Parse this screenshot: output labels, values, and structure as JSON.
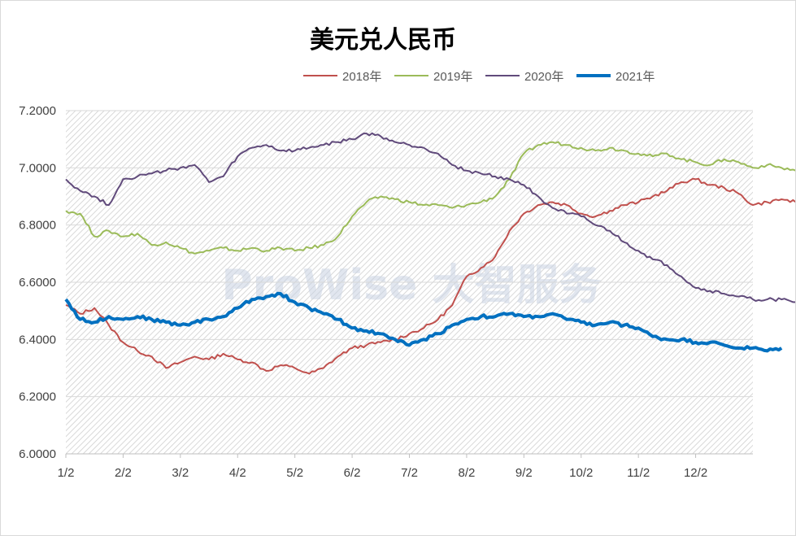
{
  "chart_data": {
    "type": "line",
    "title": "美元兑人民币",
    "watermark": "ProWise 大智服务",
    "ylim": [
      6.0,
      7.2
    ],
    "yticks": [
      "6.0000",
      "6.2000",
      "6.4000",
      "6.6000",
      "6.8000",
      "7.0000",
      "7.2000"
    ],
    "xticks": [
      "1/2",
      "2/2",
      "3/2",
      "4/2",
      "5/2",
      "6/2",
      "7/2",
      "8/2",
      "9/2",
      "10/2",
      "11/2",
      "12/2"
    ],
    "legend_position": "top",
    "grid": true,
    "series": [
      {
        "name": "2018年",
        "color": "#c0504d",
        "width": 2,
        "points": [
          [
            0,
            6.52
          ],
          [
            0.25,
            6.49
          ],
          [
            0.5,
            6.51
          ],
          [
            0.75,
            6.45
          ],
          [
            1,
            6.39
          ],
          [
            1.25,
            6.36
          ],
          [
            1.5,
            6.34
          ],
          [
            1.75,
            6.3
          ],
          [
            2,
            6.32
          ],
          [
            2.25,
            6.34
          ],
          [
            2.5,
            6.33
          ],
          [
            2.75,
            6.35
          ],
          [
            3,
            6.33
          ],
          [
            3.25,
            6.32
          ],
          [
            3.5,
            6.29
          ],
          [
            3.75,
            6.31
          ],
          [
            4,
            6.3
          ],
          [
            4.25,
            6.28
          ],
          [
            4.5,
            6.3
          ],
          [
            4.75,
            6.34
          ],
          [
            5,
            6.37
          ],
          [
            5.25,
            6.38
          ],
          [
            5.5,
            6.39
          ],
          [
            5.75,
            6.4
          ],
          [
            6,
            6.42
          ],
          [
            6.25,
            6.44
          ],
          [
            6.5,
            6.47
          ],
          [
            6.75,
            6.52
          ],
          [
            7,
            6.62
          ],
          [
            7.25,
            6.65
          ],
          [
            7.5,
            6.69
          ],
          [
            7.75,
            6.78
          ],
          [
            8,
            6.84
          ],
          [
            8.25,
            6.87
          ],
          [
            8.5,
            6.88
          ],
          [
            8.75,
            6.87
          ],
          [
            9,
            6.84
          ],
          [
            9.25,
            6.83
          ],
          [
            9.5,
            6.85
          ],
          [
            9.75,
            6.87
          ],
          [
            10,
            6.88
          ],
          [
            10.25,
            6.9
          ],
          [
            10.5,
            6.92
          ],
          [
            10.75,
            6.95
          ],
          [
            11,
            6.96
          ],
          [
            11.25,
            6.94
          ],
          [
            11.5,
            6.93
          ],
          [
            11.75,
            6.91
          ],
          [
            12,
            6.87
          ],
          [
            12.25,
            6.88
          ],
          [
            12.5,
            6.89
          ],
          [
            12.75,
            6.88
          ]
        ]
      },
      {
        "name": "2019年",
        "color": "#9bbb59",
        "width": 2,
        "points": [
          [
            0,
            6.85
          ],
          [
            0.25,
            6.84
          ],
          [
            0.5,
            6.76
          ],
          [
            0.75,
            6.78
          ],
          [
            1,
            6.76
          ],
          [
            1.25,
            6.77
          ],
          [
            1.5,
            6.73
          ],
          [
            1.75,
            6.74
          ],
          [
            2,
            6.72
          ],
          [
            2.25,
            6.7
          ],
          [
            2.5,
            6.71
          ],
          [
            2.75,
            6.72
          ],
          [
            3,
            6.71
          ],
          [
            3.25,
            6.72
          ],
          [
            3.5,
            6.71
          ],
          [
            3.75,
            6.72
          ],
          [
            4,
            6.71
          ],
          [
            4.25,
            6.72
          ],
          [
            4.5,
            6.73
          ],
          [
            4.75,
            6.76
          ],
          [
            5,
            6.83
          ],
          [
            5.25,
            6.88
          ],
          [
            5.5,
            6.9
          ],
          [
            5.75,
            6.89
          ],
          [
            6,
            6.88
          ],
          [
            6.25,
            6.87
          ],
          [
            6.5,
            6.87
          ],
          [
            6.75,
            6.86
          ],
          [
            7,
            6.87
          ],
          [
            7.25,
            6.88
          ],
          [
            7.5,
            6.9
          ],
          [
            7.75,
            6.96
          ],
          [
            8,
            7.05
          ],
          [
            8.25,
            7.08
          ],
          [
            8.5,
            7.09
          ],
          [
            8.75,
            7.08
          ],
          [
            9,
            7.07
          ],
          [
            9.25,
            7.06
          ],
          [
            9.5,
            7.07
          ],
          [
            9.75,
            7.06
          ],
          [
            10,
            7.05
          ],
          [
            10.25,
            7.04
          ],
          [
            10.5,
            7.05
          ],
          [
            10.75,
            7.03
          ],
          [
            11,
            7.02
          ],
          [
            11.25,
            7.01
          ],
          [
            11.5,
            7.03
          ],
          [
            11.75,
            7.02
          ],
          [
            12,
            7.0
          ],
          [
            12.25,
            7.01
          ],
          [
            12.5,
            7.0
          ],
          [
            12.75,
            6.99
          ]
        ]
      },
      {
        "name": "2020年",
        "color": "#604a7b",
        "width": 2,
        "points": [
          [
            0,
            6.96
          ],
          [
            0.25,
            6.92
          ],
          [
            0.5,
            6.9
          ],
          [
            0.75,
            6.87
          ],
          [
            1,
            6.96
          ],
          [
            1.25,
            6.97
          ],
          [
            1.5,
            6.98
          ],
          [
            1.75,
            6.99
          ],
          [
            2,
            7.0
          ],
          [
            2.25,
            7.01
          ],
          [
            2.5,
            6.95
          ],
          [
            2.75,
            6.97
          ],
          [
            3,
            7.04
          ],
          [
            3.25,
            7.07
          ],
          [
            3.5,
            7.08
          ],
          [
            3.75,
            7.06
          ],
          [
            4,
            7.06
          ],
          [
            4.25,
            7.07
          ],
          [
            4.5,
            7.08
          ],
          [
            4.75,
            7.09
          ],
          [
            5,
            7.1
          ],
          [
            5.25,
            7.12
          ],
          [
            5.5,
            7.11
          ],
          [
            5.75,
            7.09
          ],
          [
            6,
            7.08
          ],
          [
            6.25,
            7.07
          ],
          [
            6.5,
            7.05
          ],
          [
            6.75,
            7.01
          ],
          [
            7,
            6.99
          ],
          [
            7.25,
            6.98
          ],
          [
            7.5,
            6.97
          ],
          [
            7.75,
            6.96
          ],
          [
            8,
            6.94
          ],
          [
            8.25,
            6.9
          ],
          [
            8.5,
            6.86
          ],
          [
            8.75,
            6.84
          ],
          [
            9,
            6.83
          ],
          [
            9.25,
            6.8
          ],
          [
            9.5,
            6.78
          ],
          [
            9.75,
            6.74
          ],
          [
            10,
            6.71
          ],
          [
            10.25,
            6.68
          ],
          [
            10.5,
            6.66
          ],
          [
            10.75,
            6.62
          ],
          [
            11,
            6.58
          ],
          [
            11.25,
            6.57
          ],
          [
            11.5,
            6.56
          ],
          [
            11.75,
            6.55
          ],
          [
            12,
            6.54
          ],
          [
            12.25,
            6.54
          ],
          [
            12.5,
            6.54
          ],
          [
            12.75,
            6.53
          ]
        ]
      },
      {
        "name": "2021年",
        "color": "#0070c0",
        "width": 4,
        "points": [
          [
            0,
            6.54
          ],
          [
            0.25,
            6.47
          ],
          [
            0.5,
            6.46
          ],
          [
            0.75,
            6.48
          ],
          [
            1,
            6.47
          ],
          [
            1.25,
            6.48
          ],
          [
            1.5,
            6.47
          ],
          [
            1.75,
            6.46
          ],
          [
            2,
            6.45
          ],
          [
            2.25,
            6.46
          ],
          [
            2.5,
            6.47
          ],
          [
            2.75,
            6.48
          ],
          [
            3,
            6.51
          ],
          [
            3.25,
            6.54
          ],
          [
            3.5,
            6.55
          ],
          [
            3.75,
            6.56
          ],
          [
            4,
            6.53
          ],
          [
            4.25,
            6.51
          ],
          [
            4.5,
            6.49
          ],
          [
            4.75,
            6.47
          ],
          [
            5,
            6.44
          ],
          [
            5.25,
            6.43
          ],
          [
            5.5,
            6.42
          ],
          [
            5.75,
            6.4
          ],
          [
            6,
            6.38
          ],
          [
            6.25,
            6.4
          ],
          [
            6.5,
            6.42
          ],
          [
            6.75,
            6.45
          ],
          [
            7,
            6.47
          ],
          [
            7.25,
            6.48
          ],
          [
            7.5,
            6.48
          ],
          [
            7.75,
            6.49
          ],
          [
            8,
            6.48
          ],
          [
            8.25,
            6.48
          ],
          [
            8.5,
            6.49
          ],
          [
            8.75,
            6.47
          ],
          [
            9,
            6.46
          ],
          [
            9.25,
            6.45
          ],
          [
            9.5,
            6.46
          ],
          [
            9.75,
            6.45
          ],
          [
            10,
            6.44
          ],
          [
            10.25,
            6.41
          ],
          [
            10.5,
            6.4
          ],
          [
            10.75,
            6.4
          ],
          [
            11,
            6.39
          ],
          [
            11.25,
            6.39
          ],
          [
            11.5,
            6.38
          ],
          [
            11.75,
            6.37
          ],
          [
            12,
            6.37
          ],
          [
            12.25,
            6.36
          ],
          [
            12.5,
            6.37
          ]
        ]
      }
    ]
  }
}
